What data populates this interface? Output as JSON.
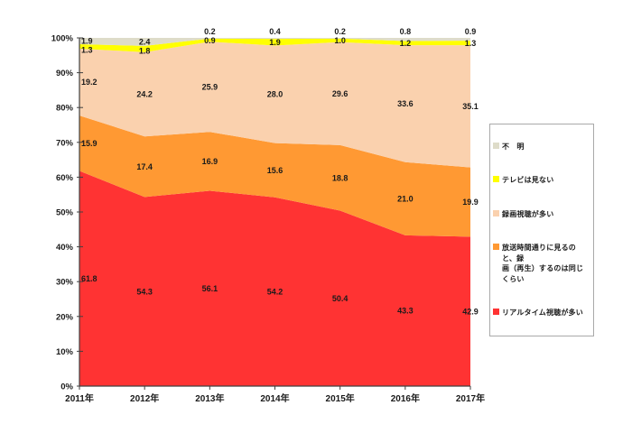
{
  "chart_data": {
    "type": "area",
    "subtype": "100%-stacked",
    "title": "",
    "x_categories": [
      "2011年",
      "2012年",
      "2013年",
      "2014年",
      "2015年",
      "2016年",
      "2017年"
    ],
    "y_ticks": [
      "0%",
      "10%",
      "20%",
      "30%",
      "40%",
      "50%",
      "60%",
      "70%",
      "80%",
      "90%",
      "100%"
    ],
    "ylim": [
      0,
      100
    ],
    "grid": false,
    "legend_position": "right",
    "series": [
      {
        "name": "リアルタイム視聴が多い",
        "color": "#FF3333",
        "values": [
          61.8,
          54.3,
          56.1,
          54.2,
          50.4,
          43.3,
          42.9
        ]
      },
      {
        "name": "放送時間通りに見るのと、録画（再生）するのは同じくらい",
        "color": "#FF9933",
        "values": [
          15.9,
          17.4,
          16.9,
          15.6,
          18.8,
          21.0,
          19.9
        ]
      },
      {
        "name": "録画視聴が多い",
        "color": "#FAD1AE",
        "values": [
          19.2,
          24.2,
          25.9,
          28.0,
          29.6,
          33.6,
          35.1
        ]
      },
      {
        "name": "テレビは見ない",
        "color": "#FFFF00",
        "values": [
          1.3,
          1.8,
          0.9,
          1.9,
          1.0,
          1.2,
          1.3
        ]
      },
      {
        "name": "不明",
        "color": "#DEDCC9",
        "values": [
          1.9,
          2.4,
          0.2,
          0.4,
          0.2,
          0.8,
          0.9
        ]
      }
    ],
    "axis_color": "#404040",
    "label_color": "#1a1a1a"
  },
  "legend": {
    "border_color": "#a9a9a9",
    "items": [
      {
        "label": "不　明",
        "color": "#DEDCC9"
      },
      {
        "label": "テレビは見ない",
        "color": "#FFFF00"
      },
      {
        "label": "録画視聴が多い",
        "color": "#FAD1AE"
      },
      {
        "label": "放送時間通りに見るのと、録\n画（再生）するのは同じくらい",
        "color": "#FF9933"
      },
      {
        "label": "リアルタイム視聴が多い",
        "color": "#FF3333"
      }
    ]
  }
}
